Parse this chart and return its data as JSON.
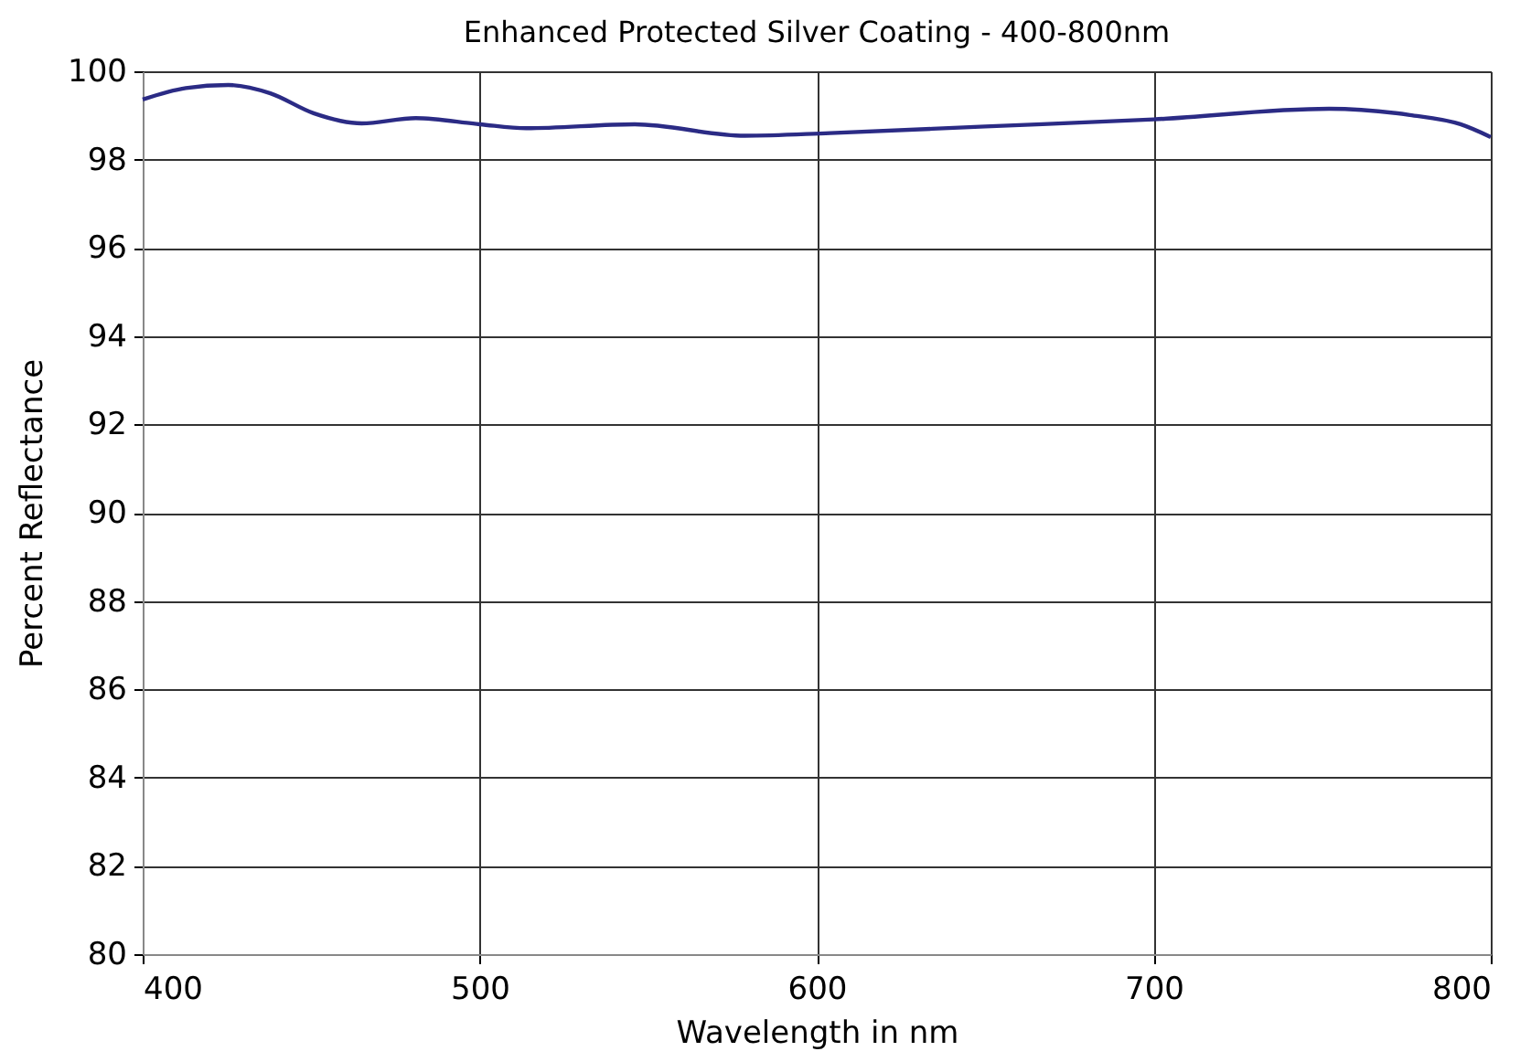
{
  "chart_data": {
    "type": "line",
    "title": "Enhanced Protected Silver Coating - 400-800nm",
    "xlabel": "Wavelength in nm",
    "ylabel": "Percent Reflectance",
    "series": [
      {
        "color": "#2b2b85",
        "x": [
          400,
          412.8,
          425.4,
          437.9,
          450.7,
          465,
          481,
          500,
          513.8,
          546,
          578.7,
          604,
          650,
          700,
          752,
          776,
          791,
          800
        ],
        "values": [
          99.36,
          99.62,
          99.69,
          99.5,
          99.05,
          98.82,
          98.94,
          98.8,
          98.71,
          98.8,
          98.54,
          98.6,
          98.75,
          98.91,
          99.15,
          99.01,
          98.8,
          98.51
        ]
      }
    ],
    "xlim": [
      400,
      800
    ],
    "ylim": [
      80,
      100
    ],
    "xticks": [
      400,
      500,
      600,
      700,
      800
    ],
    "yticks": [
      80,
      82,
      84,
      86,
      88,
      90,
      92,
      94,
      96,
      98,
      100
    ],
    "grid": true,
    "marker": "none",
    "line_style": "solid"
  }
}
